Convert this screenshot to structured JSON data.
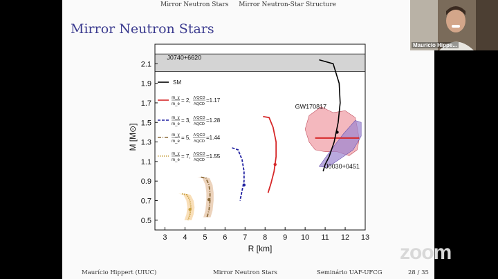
{
  "nav": {
    "section": "Mirror Neutron Stars",
    "subsection": "Mirror Neutron-Star Structure"
  },
  "slide": {
    "title": "Mirror Neutron Stars"
  },
  "footer": {
    "author": "Maurício Hippert  (UIUC)",
    "talk": "Mirror Neutron Stars",
    "event": "Seminário UAF-UFCG",
    "page": "28 / 35"
  },
  "video": {
    "participant_name": "Mauricio Hippe..."
  },
  "zoom_logo": "zoom",
  "colors": {
    "title": "#3b3b8f",
    "sm": "#000000",
    "x2": "#d62728",
    "x3": "#1f1fa0",
    "x5": "#8b6a3a",
    "x7": "#c8a040",
    "gw_red": "#f0a0a8",
    "gw_purple": "#9b85d0",
    "band": "#d4d4d4"
  },
  "chart_data": {
    "type": "line",
    "xlabel": "R [km]",
    "ylabel": "M [M⊙]",
    "xlim": [
      2.5,
      13
    ],
    "ylim": [
      0.4,
      2.3
    ],
    "xticks": [
      3,
      4,
      5,
      6,
      7,
      8,
      9,
      10,
      11,
      12,
      13
    ],
    "yticks": [
      0.5,
      0.7,
      0.9,
      1.1,
      1.3,
      1.5,
      1.7,
      1.9,
      2.1
    ],
    "band": {
      "label": "J0740+6620",
      "ymin": 2.02,
      "ymax": 2.2
    },
    "annotations": [
      "GW170817",
      "J0030+0451"
    ],
    "legend": [
      {
        "key": "sm",
        "text": "SM"
      },
      {
        "key": "x2",
        "ratio_num": "m_χ",
        "ratio_den": "m_e",
        "value": "= 2,",
        "lambda_num": "Λ'QCD",
        "lambda_den": "ΛQCD",
        "lambda_value": "=1.17"
      },
      {
        "key": "x3",
        "ratio_num": "m_χ",
        "ratio_den": "m_e",
        "value": "= 3,",
        "lambda_num": "Λ'QCD",
        "lambda_den": "ΛQCD",
        "lambda_value": "=1.28"
      },
      {
        "key": "x5",
        "ratio_num": "m_χ",
        "ratio_den": "m_e",
        "value": "= 5,",
        "lambda_num": "Λ'QCD",
        "lambda_den": "ΛQCD",
        "lambda_value": "=1.44"
      },
      {
        "key": "x7",
        "ratio_num": "m_χ",
        "ratio_den": "m_e",
        "value": "= 7,",
        "lambda_num": "Λ'QCD",
        "lambda_den": "ΛQCD",
        "lambda_value": "=1.55"
      }
    ],
    "series": [
      {
        "key": "sm",
        "style": "solid",
        "points": [
          [
            10.7,
            2.14
          ],
          [
            11.4,
            2.1
          ],
          [
            11.7,
            1.9
          ],
          [
            11.75,
            1.7
          ],
          [
            11.65,
            1.5
          ],
          [
            11.45,
            1.3
          ],
          [
            11.2,
            1.15
          ],
          [
            11.0,
            1.07
          ],
          [
            10.9,
            1.0
          ]
        ],
        "marker": [
          11.6,
          1.4
        ]
      },
      {
        "key": "x2",
        "style": "solid",
        "points": [
          [
            7.9,
            1.56
          ],
          [
            8.2,
            1.55
          ],
          [
            8.4,
            1.45
          ],
          [
            8.55,
            1.3
          ],
          [
            8.55,
            1.15
          ],
          [
            8.45,
            1.0
          ],
          [
            8.3,
            0.88
          ],
          [
            8.15,
            0.78
          ]
        ],
        "marker": [
          8.5,
          1.07
        ]
      },
      {
        "key": "x3",
        "style": "dashed",
        "points": [
          [
            6.35,
            1.24
          ],
          [
            6.65,
            1.22
          ],
          [
            6.85,
            1.12
          ],
          [
            6.95,
            1.0
          ],
          [
            6.95,
            0.9
          ],
          [
            6.85,
            0.8
          ],
          [
            6.75,
            0.7
          ]
        ],
        "marker": [
          6.95,
          0.86
        ]
      },
      {
        "key": "x5",
        "style": "dashdot",
        "points": [
          [
            4.8,
            0.94
          ],
          [
            5.05,
            0.93
          ],
          [
            5.2,
            0.86
          ],
          [
            5.25,
            0.78
          ],
          [
            5.25,
            0.7
          ],
          [
            5.2,
            0.6
          ],
          [
            5.1,
            0.53
          ]
        ],
        "marker": [
          5.2,
          0.71
        ]
      },
      {
        "key": "x7",
        "style": "dotted",
        "points": [
          [
            3.85,
            0.77
          ],
          [
            4.1,
            0.76
          ],
          [
            4.25,
            0.7
          ],
          [
            4.3,
            0.63
          ],
          [
            4.25,
            0.56
          ],
          [
            4.15,
            0.5
          ]
        ],
        "marker": [
          4.25,
          0.61
        ]
      }
    ]
  }
}
